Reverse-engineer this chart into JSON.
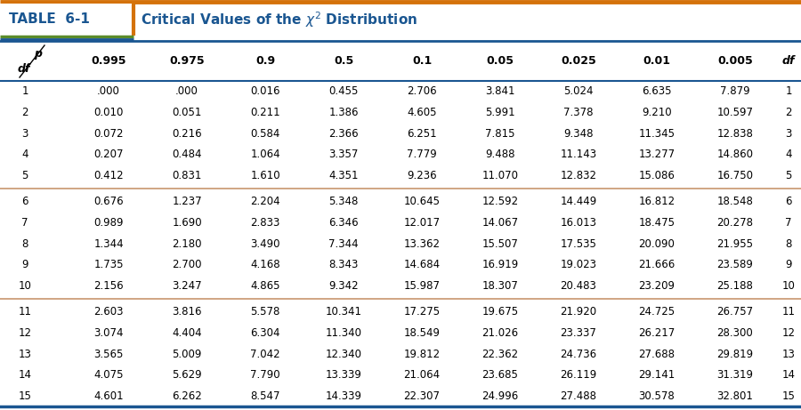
{
  "title_table": "TABLE  6-1",
  "title_desc": "Critical Values of the $\\chi^2$ Distribution",
  "col_headers": [
    "0.995",
    "0.975",
    "0.9",
    "0.5",
    "0.1",
    "0.05",
    "0.025",
    "0.01",
    "0.005"
  ],
  "row_labels": [
    "1",
    "2",
    "3",
    "4",
    "5",
    "6",
    "7",
    "8",
    "9",
    "10",
    "11",
    "12",
    "13",
    "14",
    "15"
  ],
  "table_data": [
    [
      ".000",
      ".000",
      "0.016",
      "0.455",
      "2.706",
      "3.841",
      "5.024",
      "6.635",
      "7.879"
    ],
    [
      "0.010",
      "0.051",
      "0.211",
      "1.386",
      "4.605",
      "5.991",
      "7.378",
      "9.210",
      "10.597"
    ],
    [
      "0.072",
      "0.216",
      "0.584",
      "2.366",
      "6.251",
      "7.815",
      "9.348",
      "11.345",
      "12.838"
    ],
    [
      "0.207",
      "0.484",
      "1.064",
      "3.357",
      "7.779",
      "9.488",
      "11.143",
      "13.277",
      "14.860"
    ],
    [
      "0.412",
      "0.831",
      "1.610",
      "4.351",
      "9.236",
      "11.070",
      "12.832",
      "15.086",
      "16.750"
    ],
    [
      "0.676",
      "1.237",
      "2.204",
      "5.348",
      "10.645",
      "12.592",
      "14.449",
      "16.812",
      "18.548"
    ],
    [
      "0.989",
      "1.690",
      "2.833",
      "6.346",
      "12.017",
      "14.067",
      "16.013",
      "18.475",
      "20.278"
    ],
    [
      "1.344",
      "2.180",
      "3.490",
      "7.344",
      "13.362",
      "15.507",
      "17.535",
      "20.090",
      "21.955"
    ],
    [
      "1.735",
      "2.700",
      "4.168",
      "8.343",
      "14.684",
      "16.919",
      "19.023",
      "21.666",
      "23.589"
    ],
    [
      "2.156",
      "3.247",
      "4.865",
      "9.342",
      "15.987",
      "18.307",
      "20.483",
      "23.209",
      "25.188"
    ],
    [
      "2.603",
      "3.816",
      "5.578",
      "10.341",
      "17.275",
      "19.675",
      "21.920",
      "24.725",
      "26.757"
    ],
    [
      "3.074",
      "4.404",
      "6.304",
      "11.340",
      "18.549",
      "21.026",
      "23.337",
      "26.217",
      "28.300"
    ],
    [
      "3.565",
      "5.009",
      "7.042",
      "12.340",
      "19.812",
      "22.362",
      "24.736",
      "27.688",
      "29.819"
    ],
    [
      "4.075",
      "5.629",
      "7.790",
      "13.339",
      "21.064",
      "23.685",
      "26.119",
      "29.141",
      "31.319"
    ],
    [
      "4.601",
      "6.262",
      "8.547",
      "14.339",
      "22.307",
      "24.996",
      "27.488",
      "30.578",
      "32.801"
    ]
  ],
  "orange_color": "#D4720A",
  "blue_color": "#1A5691",
  "green_color": "#5B8C2A",
  "separator_color": "#C8966E",
  "text_color": "#1a1a1a"
}
